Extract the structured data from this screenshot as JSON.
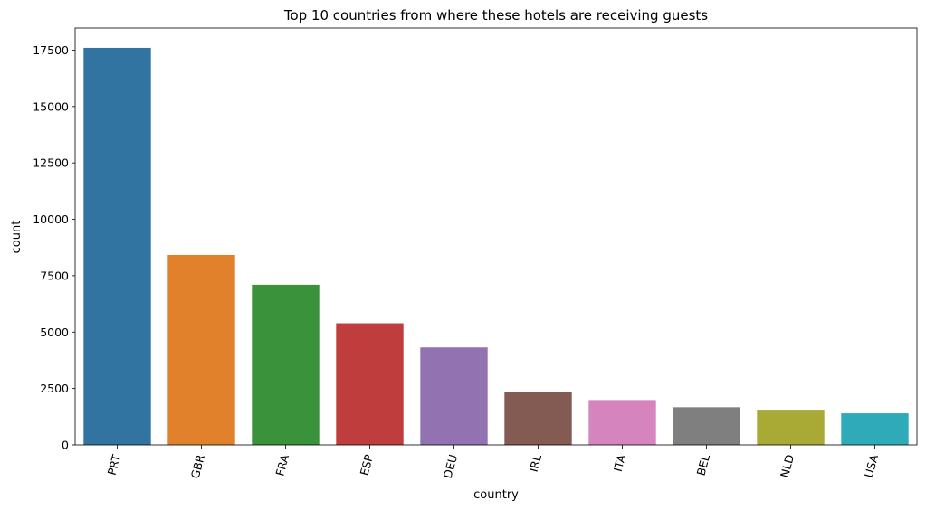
{
  "chart_data": {
    "type": "bar",
    "title": "Top 10 countries from where these hotels are receiving guests",
    "xlabel": "country",
    "ylabel": "count",
    "categories": [
      "PRT",
      "GBR",
      "FRA",
      "ESP",
      "DEU",
      "IRL",
      "ITA",
      "BEL",
      "NLD",
      "USA"
    ],
    "values": [
      17600,
      8420,
      7100,
      5390,
      4320,
      2350,
      1990,
      1670,
      1560,
      1400
    ],
    "colors": [
      "#3274a1",
      "#e1812c",
      "#3a923a",
      "#c03d3e",
      "#9372b2",
      "#845b53",
      "#d684bd",
      "#7f7f7f",
      "#a9aa35",
      "#2eaab8"
    ],
    "yticks": [
      0,
      2500,
      5000,
      7500,
      10000,
      12500,
      15000,
      17500
    ],
    "ylim": [
      0,
      18480
    ],
    "grid": false,
    "legend": "none",
    "xtick_rotation_deg": -75
  }
}
